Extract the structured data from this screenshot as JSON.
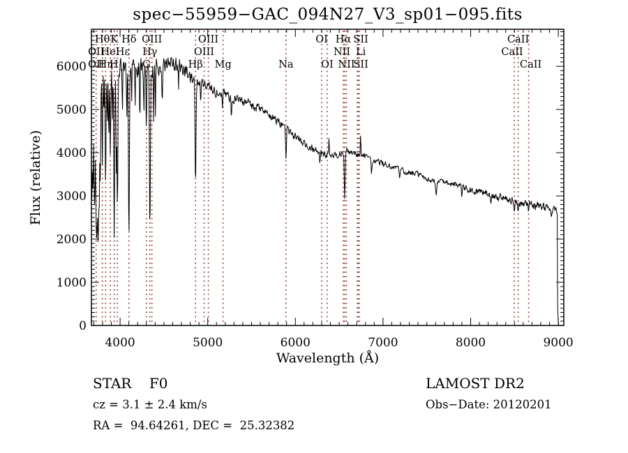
{
  "chart_data": {
    "type": "line",
    "title": "spec−55959−GAC_094N27_V3_sp01−095.fits",
    "xlabel": "Wavelength (Å)",
    "ylabel": "Flux (relative)",
    "xlim": [
      3673,
      9063
    ],
    "ylim": [
      0,
      6857
    ],
    "xticks": [
      4000,
      5000,
      6000,
      7000,
      8000,
      9000
    ],
    "xtick_labels": [
      "4000",
      "5000",
      "6000",
      "7000",
      "8000",
      "9000"
    ],
    "yticks": [
      0,
      1000,
      2000,
      3000,
      4000,
      5000,
      6000
    ],
    "ytick_labels": [
      "0",
      "1000",
      "2000",
      "3000",
      "4000",
      "5000",
      "6000"
    ],
    "x_minor_step": 100,
    "y_minor_step": 100,
    "line_color": "#000000",
    "marker_color": "#8f3a30",
    "noise_seed": 20120201,
    "continuum": [
      [
        3673,
        5200
      ],
      [
        3700,
        5450
      ],
      [
        3760,
        5600
      ],
      [
        3800,
        5700
      ],
      [
        3900,
        5850
      ],
      [
        4000,
        5950
      ],
      [
        4150,
        6000
      ],
      [
        4300,
        5950
      ],
      [
        4450,
        6000
      ],
      [
        4600,
        6050
      ],
      [
        4750,
        5900
      ],
      [
        4870,
        5650
      ],
      [
        5000,
        5520
      ],
      [
        5175,
        5350
      ],
      [
        5350,
        5250
      ],
      [
        5550,
        5050
      ],
      [
        5750,
        4800
      ],
      [
        5950,
        4450
      ],
      [
        6150,
        4150
      ],
      [
        6350,
        3950
      ],
      [
        6500,
        3950
      ],
      [
        6563,
        4050
      ],
      [
        6650,
        4000
      ],
      [
        6800,
        3900
      ],
      [
        7000,
        3750
      ],
      [
        7200,
        3600
      ],
      [
        7400,
        3480
      ],
      [
        7600,
        3330
      ],
      [
        7800,
        3280
      ],
      [
        8000,
        3150
      ],
      [
        8200,
        3050
      ],
      [
        8400,
        2930
      ],
      [
        8600,
        2820
      ],
      [
        8800,
        2750
      ],
      [
        8950,
        2680
      ],
      [
        8990,
        2600
      ],
      [
        8993,
        500
      ],
      [
        9000,
        130
      ],
      [
        9008,
        60
      ]
    ],
    "noise_profile": [
      [
        3673,
        520
      ],
      [
        3755,
        400
      ],
      [
        3790,
        280
      ],
      [
        3850,
        230
      ],
      [
        3950,
        200
      ],
      [
        4150,
        215
      ],
      [
        4450,
        200
      ],
      [
        4700,
        165
      ],
      [
        5000,
        135
      ],
      [
        5400,
        110
      ],
      [
        5900,
        90
      ],
      [
        6400,
        78
      ],
      [
        7000,
        68
      ],
      [
        7600,
        72
      ],
      [
        8100,
        82
      ],
      [
        8600,
        92
      ],
      [
        9010,
        100
      ]
    ],
    "absorption_lines": [
      [
        3678,
        3000,
        5
      ],
      [
        3691,
        3450,
        4
      ],
      [
        3705,
        2750,
        5
      ],
      [
        3714,
        3900,
        3.5
      ],
      [
        3727,
        2250,
        5
      ],
      [
        3737,
        2700,
        4
      ],
      [
        3745,
        3950,
        3.5
      ],
      [
        3752,
        2100,
        5
      ],
      [
        3762,
        3300,
        4
      ],
      [
        3774,
        3100,
        4.5
      ],
      [
        3798,
        3900,
        4.5
      ],
      [
        3815,
        4700,
        3
      ],
      [
        3835,
        3300,
        4.5
      ],
      [
        3856,
        4600,
        3
      ],
      [
        3871,
        4350,
        3
      ],
      [
        3889,
        3850,
        4.5
      ],
      [
        3912,
        4900,
        3
      ],
      [
        3933,
        1960,
        5
      ],
      [
        3957,
        3600,
        3.5
      ],
      [
        3970,
        2700,
        5
      ],
      [
        4026,
        4900,
        3.5
      ],
      [
        4077,
        4750,
        3
      ],
      [
        4101,
        1950,
        5.5
      ],
      [
        4132,
        5000,
        3
      ],
      [
        4172,
        4900,
        3
      ],
      [
        4226,
        4650,
        3.5
      ],
      [
        4271,
        4850,
        3
      ],
      [
        4300,
        4550,
        4
      ],
      [
        4340,
        2100,
        5.5
      ],
      [
        4383,
        4750,
        3.5
      ],
      [
        4404,
        4850,
        3
      ],
      [
        4481,
        5150,
        3
      ],
      [
        4668,
        5350,
        3
      ],
      [
        4861,
        3150,
        5
      ],
      [
        4921,
        5100,
        3
      ],
      [
        5169,
        4900,
        4
      ],
      [
        5270,
        4850,
        4
      ],
      [
        5893,
        3800,
        5
      ],
      [
        6280,
        3720,
        4
      ],
      [
        6563,
        2930,
        5
      ],
      [
        6870,
        3530,
        5
      ],
      [
        7190,
        3370,
        5
      ],
      [
        7605,
        3020,
        7
      ],
      [
        7900,
        3000,
        4
      ],
      [
        8230,
        2820,
        4
      ],
      [
        8498,
        2640,
        4
      ],
      [
        8542,
        2590,
        4
      ],
      [
        8662,
        2610,
        4
      ],
      [
        8920,
        2450,
        4
      ]
    ],
    "emission_spikes": [
      [
        6385,
        4560,
        2.2
      ],
      [
        6745,
        4590,
        2.2
      ]
    ],
    "marker_wavelengths": [
      3727,
      3798,
      3835,
      3889,
      3933,
      3968,
      4101,
      4300,
      4340,
      4363,
      4861,
      4959,
      5007,
      5175,
      5893,
      6300,
      6363,
      6548,
      6563,
      6583,
      6707,
      6716,
      6731,
      8498,
      8542,
      8662
    ],
    "line_labels": [
      {
        "t": "Hθ",
        "wl": 3798,
        "row": 0
      },
      {
        "t": "K",
        "wl": 3933,
        "row": 0
      },
      {
        "t": "Hδ",
        "wl": 4101,
        "row": 0
      },
      {
        "t": "OIII",
        "wl": 4363,
        "row": 0
      },
      {
        "t": "OIII",
        "wl": 5007,
        "row": 0
      },
      {
        "t": "OI",
        "wl": 6300,
        "row": 0
      },
      {
        "t": "Hα",
        "wl": 6563,
        "row": 0,
        "dx": -2
      },
      {
        "t": "SII",
        "wl": 6731,
        "row": 0,
        "dx": 2
      },
      {
        "t": "CaII",
        "wl": 8542,
        "row": 0
      },
      {
        "t": "OII",
        "wl": 3727,
        "row": 1
      },
      {
        "t": "HeI",
        "wl": 3889,
        "row": 1
      },
      {
        "t": "Hε",
        "wl": 3975,
        "row": 1,
        "dx": 7
      },
      {
        "t": "Hγ",
        "wl": 4340,
        "row": 1
      },
      {
        "t": "OIII",
        "wl": 4959,
        "row": 1
      },
      {
        "t": "NII",
        "wl": 6548,
        "row": 1,
        "dx": -2
      },
      {
        "t": "Li",
        "wl": 6707,
        "row": 1,
        "dx": 5
      },
      {
        "t": "CaII",
        "wl": 8498,
        "row": 1,
        "dx": -3
      },
      {
        "t": "OII",
        "wl": 3727,
        "row": 2
      },
      {
        "t": "Hη",
        "wl": 3835,
        "row": 2
      },
      {
        "t": "H",
        "wl": 3968,
        "row": 2,
        "dx": -5
      },
      {
        "t": "G",
        "wl": 4300,
        "row": 2
      },
      {
        "t": "Hβ",
        "wl": 4861,
        "row": 2
      },
      {
        "t": "Mg",
        "wl": 5175,
        "row": 2
      },
      {
        "t": "Na",
        "wl": 5893,
        "row": 2
      },
      {
        "t": "OI",
        "wl": 6363,
        "row": 2
      },
      {
        "t": "NII",
        "wl": 6583,
        "row": 2
      },
      {
        "t": "SII",
        "wl": 6716,
        "row": 2,
        "dx": 4
      },
      {
        "t": "CaII",
        "wl": 8662,
        "row": 2,
        "dx": 3
      }
    ]
  },
  "footer": {
    "class_label": "STAR    F0",
    "cz": "cz = 3.1 ± 2.4 km/s",
    "radec": "RA =  94.64261, DEC =  25.32382",
    "survey": "LAMOST DR2",
    "obs_date": "Obs−Date: 20120201"
  }
}
